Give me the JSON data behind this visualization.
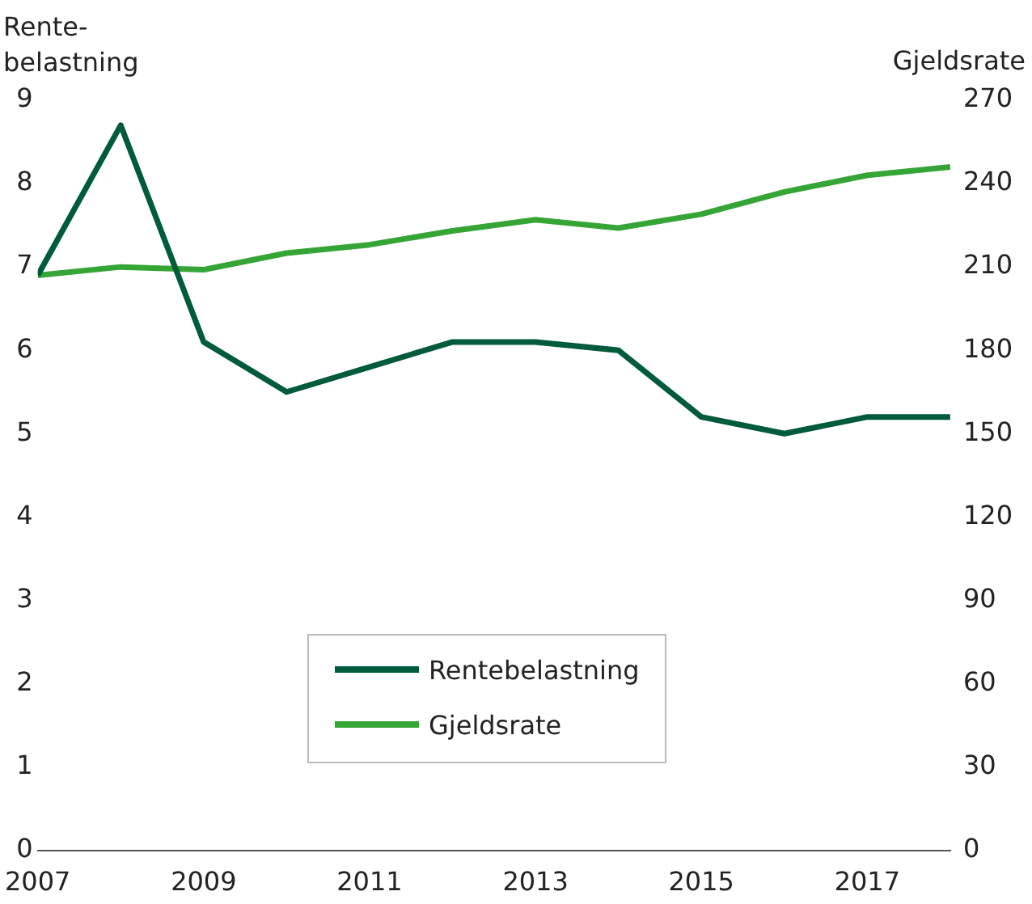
{
  "chart_data": {
    "type": "line",
    "x": [
      2007,
      2008,
      2009,
      2010,
      2011,
      2012,
      2013,
      2014,
      2015,
      2016,
      2017,
      2018
    ],
    "series": [
      {
        "name": "Rentebelastning",
        "color": "#005a3c",
        "values": [
          6.9,
          8.7,
          6.1,
          5.5,
          5.8,
          6.1,
          6.1,
          6.0,
          5.2,
          5.0,
          5.2,
          5.2
        ]
      },
      {
        "name": "Gjeldsrate",
        "color": "#35a535",
        "axis": "y2",
        "values": [
          207,
          210,
          209,
          215,
          218,
          223,
          227,
          224,
          229,
          237,
          243,
          246
        ]
      }
    ],
    "ylabel": "Rente-\nbelastning",
    "y2label": "Gjeldsrate",
    "xlim": [
      2007,
      2018
    ],
    "xticks": [
      2007,
      2009,
      2011,
      2013,
      2015,
      2017
    ],
    "ylim": [
      0,
      9
    ],
    "yticks": [
      0,
      1,
      2,
      3,
      4,
      5,
      6,
      7,
      8,
      9
    ],
    "y2lim": [
      0,
      270
    ],
    "y2ticks": [
      0,
      30,
      60,
      90,
      120,
      150,
      180,
      210,
      240,
      270
    ],
    "legend": "bottom",
    "grid": false,
    "marker": "none",
    "line_style": "solid"
  }
}
